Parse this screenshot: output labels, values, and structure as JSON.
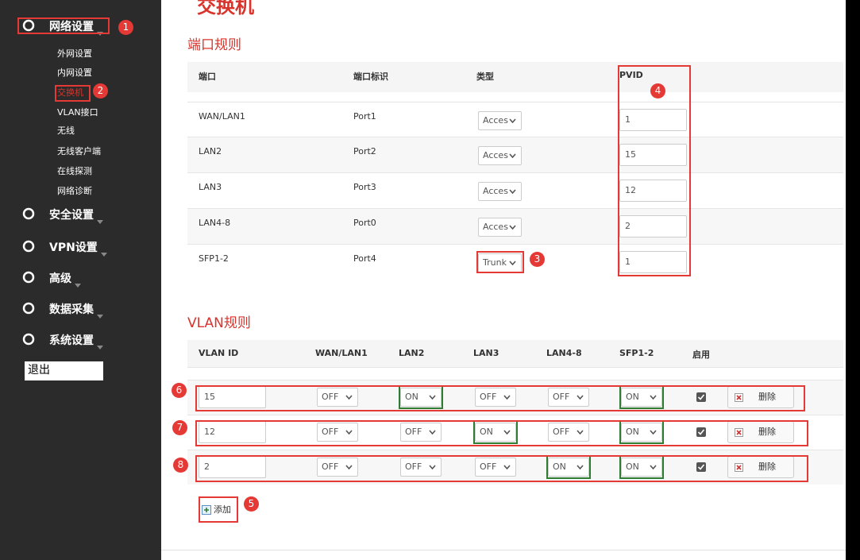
{
  "page_title": "交换机",
  "sidebar": {
    "menu": [
      {
        "label": "网络设置",
        "children": [
          "外网设置",
          "内网设置",
          "交换机",
          "VLAN接口",
          "无线",
          "无线客户端",
          "在线探测",
          "网络诊断"
        ]
      },
      {
        "label": "安全设置"
      },
      {
        "label": "VPN设置"
      },
      {
        "label": "高级"
      },
      {
        "label": "数据采集"
      },
      {
        "label": "系统设置"
      }
    ],
    "logout": "退出"
  },
  "port_rules": {
    "title": "端口规则",
    "headers": [
      "端口",
      "端口标识",
      "类型",
      "PVID"
    ],
    "rows": [
      [
        "WAN/LAN1",
        "Port1",
        "Acces",
        "1"
      ],
      [
        "LAN2",
        "Port2",
        "Acces",
        "15"
      ],
      [
        "LAN3",
        "Port3",
        "Acces",
        "12"
      ],
      [
        "LAN4-8",
        "Port0",
        "Acces",
        "2"
      ],
      [
        "SFP1-2",
        "Port4",
        "Trunk",
        "1"
      ]
    ]
  },
  "vlan_rules": {
    "title": "VLAN规则",
    "headers": [
      "VLAN ID",
      "WAN/LAN1",
      "LAN2",
      "LAN3",
      "LAN4-8",
      "SFP1-2",
      "启用"
    ],
    "rows": [
      {
        "vlan_id": "15",
        "ports": [
          "OFF",
          "ON",
          "OFF",
          "OFF",
          "ON"
        ]
      },
      {
        "vlan_id": "12",
        "ports": [
          "OFF",
          "OFF",
          "ON",
          "OFF",
          "ON"
        ]
      },
      {
        "vlan_id": "2",
        "ports": [
          "OFF",
          "OFF",
          "OFF",
          "ON",
          "ON"
        ]
      }
    ],
    "delete": "删除",
    "add": "添加"
  },
  "callouts": [
    1,
    2,
    3,
    4,
    5,
    6,
    7,
    8
  ]
}
